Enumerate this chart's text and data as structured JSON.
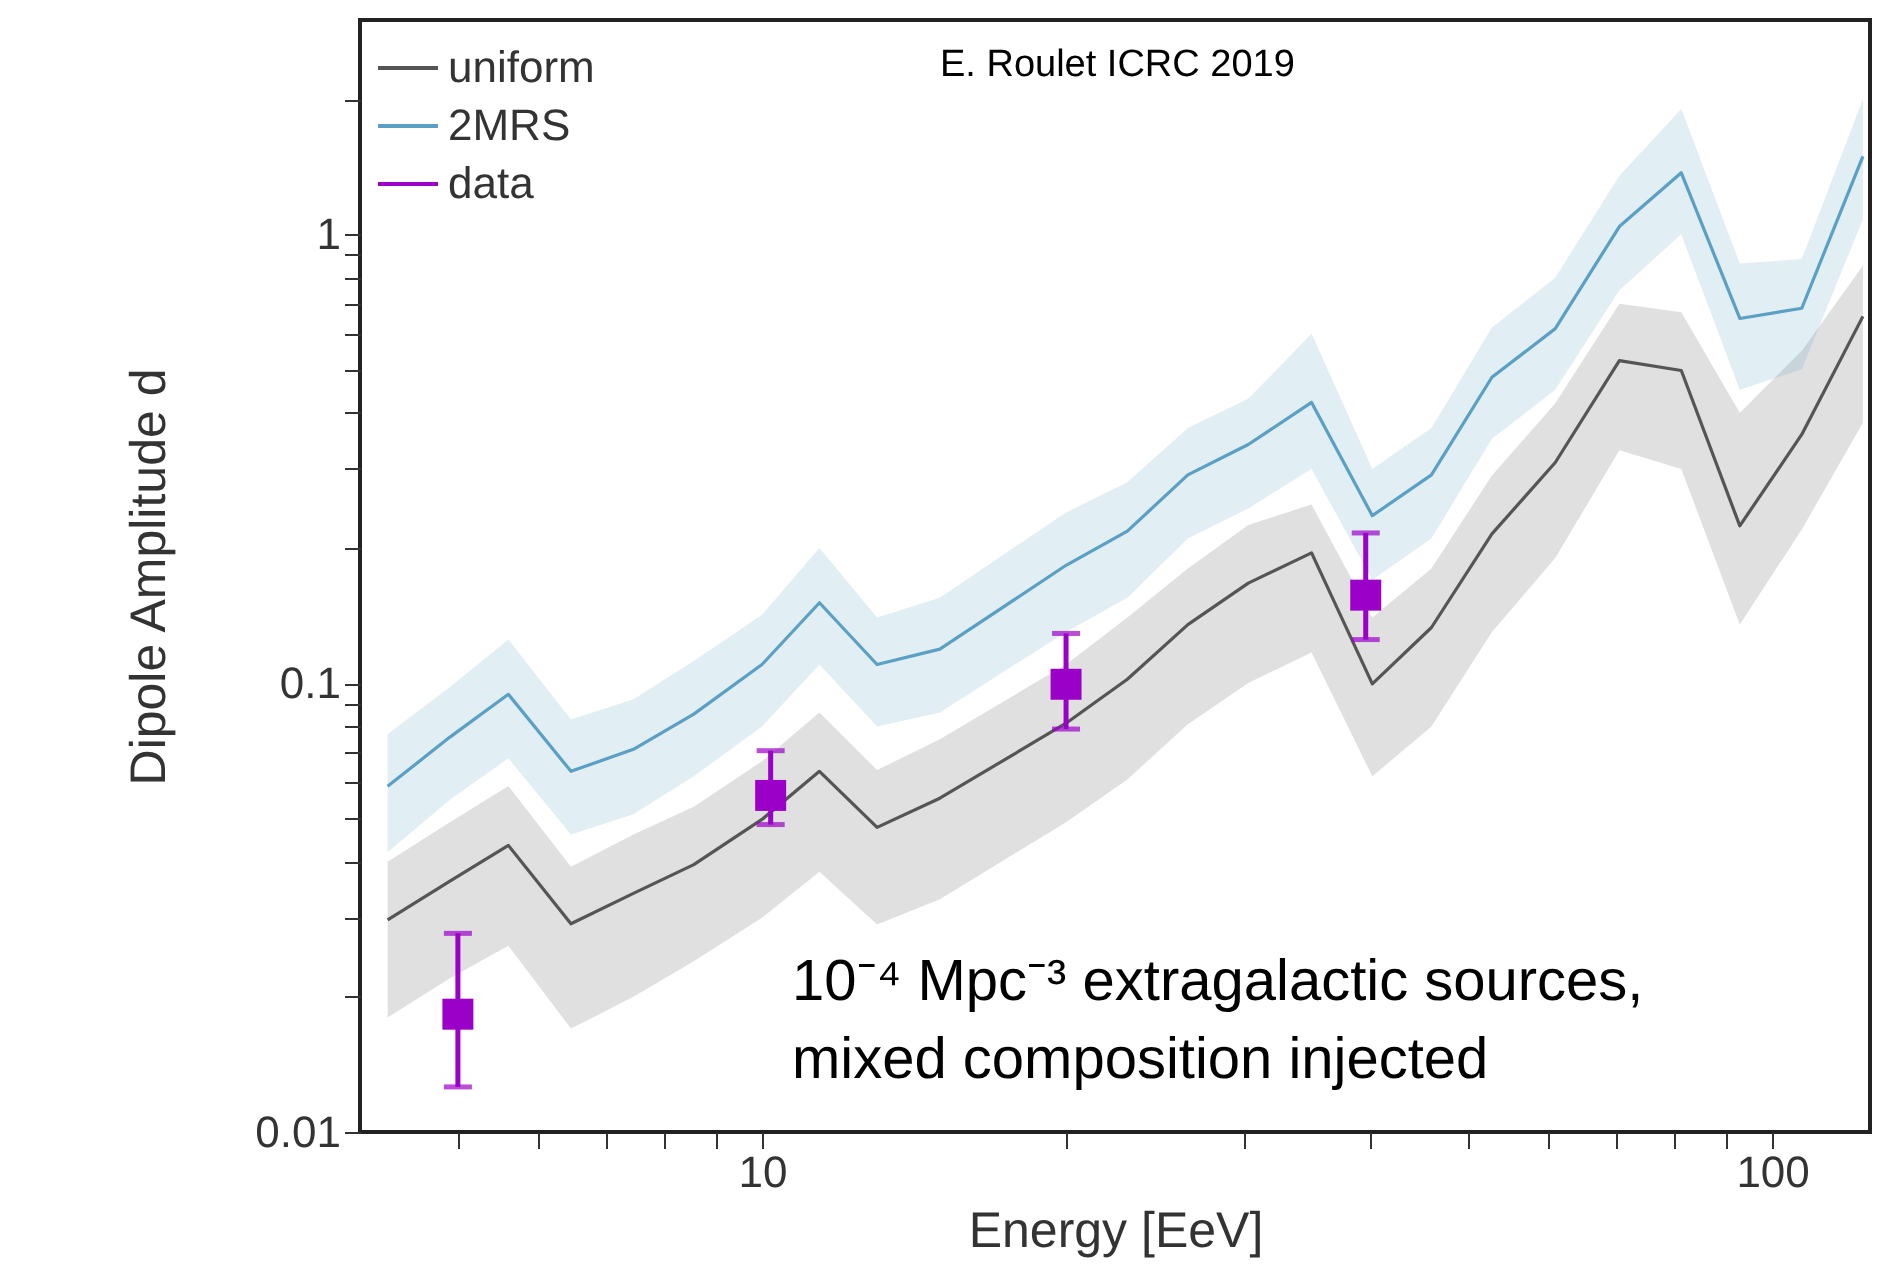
{
  "chart_data": {
    "type": "line",
    "xlabel": "Energy [EeV]",
    "ylabel": "Dipole Amplitude d",
    "log": "xy",
    "xlim": [
      4,
      125
    ],
    "ylim": [
      0.01,
      3
    ],
    "xticks": [
      {
        "value": 5,
        "label": null
      },
      {
        "value": 6,
        "label": null
      },
      {
        "value": 7,
        "label": null
      },
      {
        "value": 8,
        "label": null
      },
      {
        "value": 9,
        "label": null
      },
      10,
      {
        "value": 20,
        "label": null
      },
      {
        "value": 30,
        "label": null
      },
      {
        "value": 40,
        "label": null
      },
      {
        "value": 50,
        "label": null
      },
      {
        "value": 60,
        "label": null
      },
      {
        "value": 70,
        "label": null
      },
      {
        "value": 80,
        "label": null
      },
      {
        "value": 90,
        "label": null
      },
      100
    ],
    "yticks": [
      0.01,
      {
        "value": 0.02,
        "label": null
      },
      {
        "value": 0.03,
        "label": null
      },
      {
        "value": 0.04,
        "label": null
      },
      {
        "value": 0.05,
        "label": null
      },
      {
        "value": 0.06,
        "label": null
      },
      {
        "value": 0.07,
        "label": null
      },
      {
        "value": 0.08,
        "label": null
      },
      {
        "value": 0.09,
        "label": null
      },
      0.1,
      {
        "value": 0.2,
        "label": null
      },
      {
        "value": 0.3,
        "label": null
      },
      {
        "value": 0.4,
        "label": null
      },
      {
        "value": 0.5,
        "label": null
      },
      {
        "value": 0.6,
        "label": null
      },
      {
        "value": 0.7,
        "label": null
      },
      {
        "value": 0.8,
        "label": null
      },
      {
        "value": 0.9,
        "label": null
      },
      1,
      {
        "value": 2,
        "label": null
      }
    ],
    "legend": "top left",
    "x": [
      4.26,
      4.91,
      5.61,
      6.47,
      7.46,
      8.56,
      10,
      11.4,
      13,
      15,
      20,
      23,
      26.4,
      30.3,
      35,
      40.2,
      46,
      52.8,
      61,
      70.6,
      81.3,
      92.9,
      107,
      123
    ],
    "series": [
      {
        "name": "uniform",
        "color": "#555555",
        "values": [
          0.0297,
          0.0362,
          0.0435,
          0.0291,
          0.034,
          0.0394,
          0.0497,
          0.0636,
          0.0477,
          0.0554,
          0.0814,
          0.102,
          0.135,
          0.167,
          0.195,
          0.0996,
          0.133,
          0.215,
          0.31,
          0.523,
          0.497,
          0.224,
          0.358,
          0.656
        ],
        "upper": [
          0.04,
          0.049,
          0.059,
          0.039,
          0.046,
          0.053,
          0.067,
          0.086,
          0.064,
          0.075,
          0.11,
          0.14,
          0.18,
          0.225,
          0.25,
          0.14,
          0.18,
          0.29,
          0.42,
          0.7,
          0.67,
          0.4,
          0.55,
          0.85
        ],
        "lower": [
          0.018,
          0.022,
          0.026,
          0.017,
          0.02,
          0.024,
          0.03,
          0.038,
          0.029,
          0.033,
          0.049,
          0.061,
          0.081,
          0.1,
          0.117,
          0.062,
          0.08,
          0.13,
          0.19,
          0.33,
          0.3,
          0.135,
          0.22,
          0.38
        ]
      },
      {
        "name": "2MRS",
        "color": "#5a9fc4",
        "values": [
          0.0589,
          0.0758,
          0.0944,
          0.0636,
          0.0712,
          0.0853,
          0.11,
          0.151,
          0.11,
          0.119,
          0.183,
          0.218,
          0.291,
          0.34,
          0.422,
          0.236,
          0.291,
          0.48,
          0.616,
          1.04,
          1.37,
          0.649,
          0.684,
          1.49
        ],
        "upper": [
          0.077,
          0.098,
          0.125,
          0.083,
          0.092,
          0.112,
          0.142,
          0.2,
          0.14,
          0.155,
          0.24,
          0.28,
          0.37,
          0.43,
          0.6,
          0.3,
          0.37,
          0.62,
          0.8,
          1.35,
          1.9,
          0.86,
          0.88,
          2.0
        ],
        "lower": [
          0.042,
          0.055,
          0.068,
          0.046,
          0.051,
          0.062,
          0.08,
          0.11,
          0.08,
          0.086,
          0.13,
          0.155,
          0.21,
          0.245,
          0.3,
          0.17,
          0.21,
          0.35,
          0.45,
          0.75,
          1.0,
          0.45,
          0.5,
          1.08
        ]
      },
      {
        "name": "data",
        "type": "scatter",
        "marker": "square",
        "color": "#9b00c8",
        "x": [
          5.0,
          10.2,
          20,
          39.6
        ],
        "values": [
          0.0183,
          0.0562,
          0.0994,
          0.157
        ],
        "errors": [
          [
            0.0126,
            0.0277
          ],
          [
            0.0484,
            0.0707
          ],
          [
            0.079,
            0.129
          ],
          [
            0.125,
            0.216
          ]
        ]
      }
    ],
    "annotations": [
      "E. Roulet ICRC 2019",
      "10⁻⁴ Mpc⁻³ extragalactic sources, mixed composition injected"
    ]
  }
}
